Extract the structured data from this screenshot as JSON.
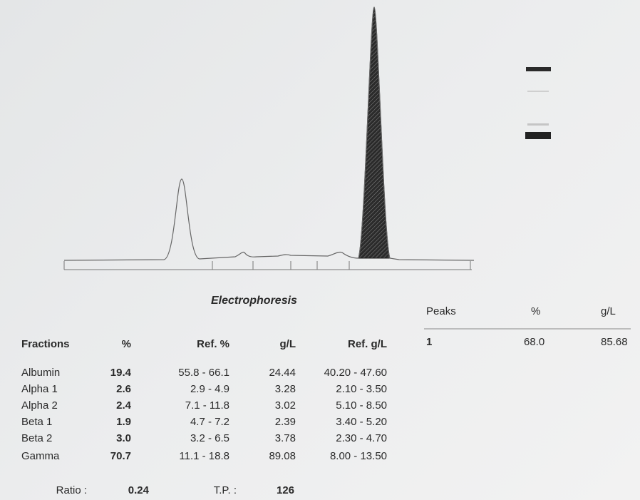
{
  "title": "Electrophoresis",
  "fractions": {
    "headers": [
      "Fractions",
      "%",
      "Ref. %",
      "g/L",
      "Ref. g/L"
    ],
    "rows": [
      [
        "Albumin",
        "19.4",
        "55.8 - 66.1",
        "24.44",
        "40.20 - 47.60"
      ],
      [
        "Alpha 1",
        "2.6",
        "2.9 - 4.9",
        "3.28",
        "2.10 - 3.50"
      ],
      [
        "Alpha 2",
        "2.4",
        "7.1 - 11.8",
        "3.02",
        "5.10 - 8.50"
      ],
      [
        "Beta 1",
        "1.9",
        "4.7 - 7.2",
        "2.39",
        "3.40 - 5.20"
      ],
      [
        "Beta 2",
        "3.0",
        "3.2 - 6.5",
        "3.78",
        "2.30 - 4.70"
      ],
      [
        "Gamma",
        "70.7",
        "11.1 - 18.8",
        "89.08",
        "8.00 - 13.50"
      ]
    ]
  },
  "summary": {
    "ratio_label": "Ratio :",
    "ratio": "0.24",
    "tp_label": "T.P. :",
    "tp": "126"
  },
  "peaks": {
    "headers": [
      "Peaks",
      "%",
      "g/L"
    ],
    "rows": [
      [
        "1",
        "68.0",
        "85.68"
      ]
    ]
  }
}
